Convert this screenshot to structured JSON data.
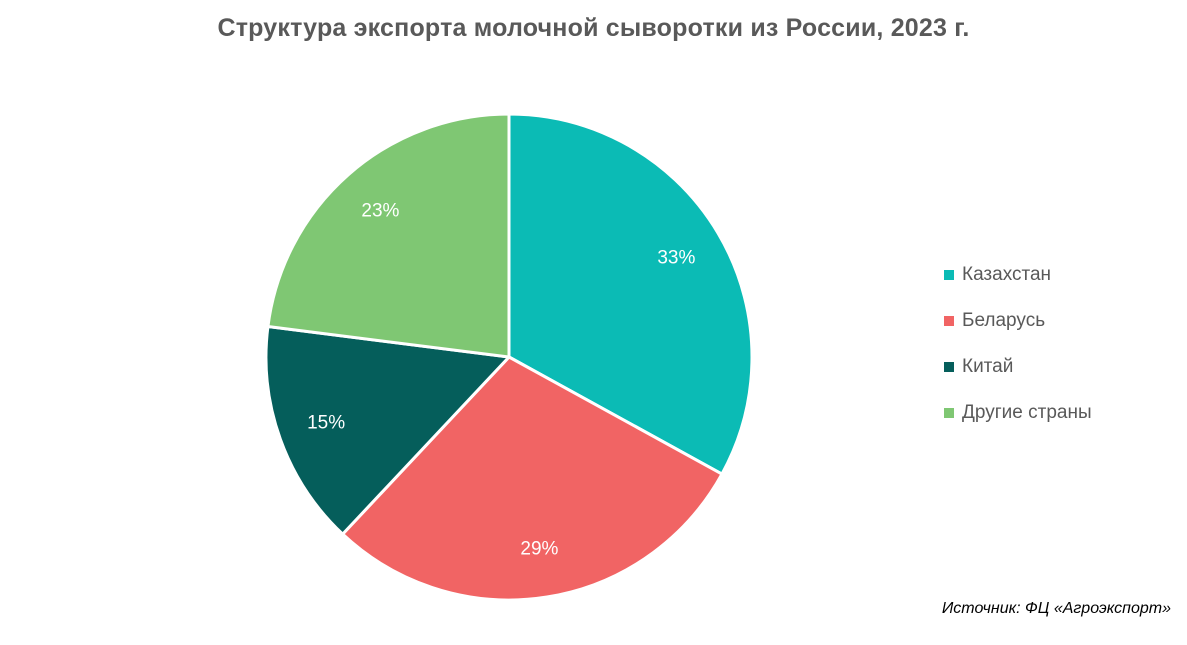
{
  "chart_data": {
    "type": "pie",
    "title": "Структура экспорта молочной сыворотки из России, 2023 г.",
    "categories": [
      "Казахстан",
      "Беларусь",
      "Китай",
      "Другие страны"
    ],
    "values": [
      33,
      29,
      15,
      23
    ],
    "labels": [
      "33%",
      "29%",
      "15%",
      "23%"
    ],
    "colors": [
      "#0bbbb5",
      "#f16464",
      "#055e5b",
      "#7fc773"
    ],
    "legend": "right",
    "source": "Источник: ФЦ «Агроэкспорт»"
  }
}
